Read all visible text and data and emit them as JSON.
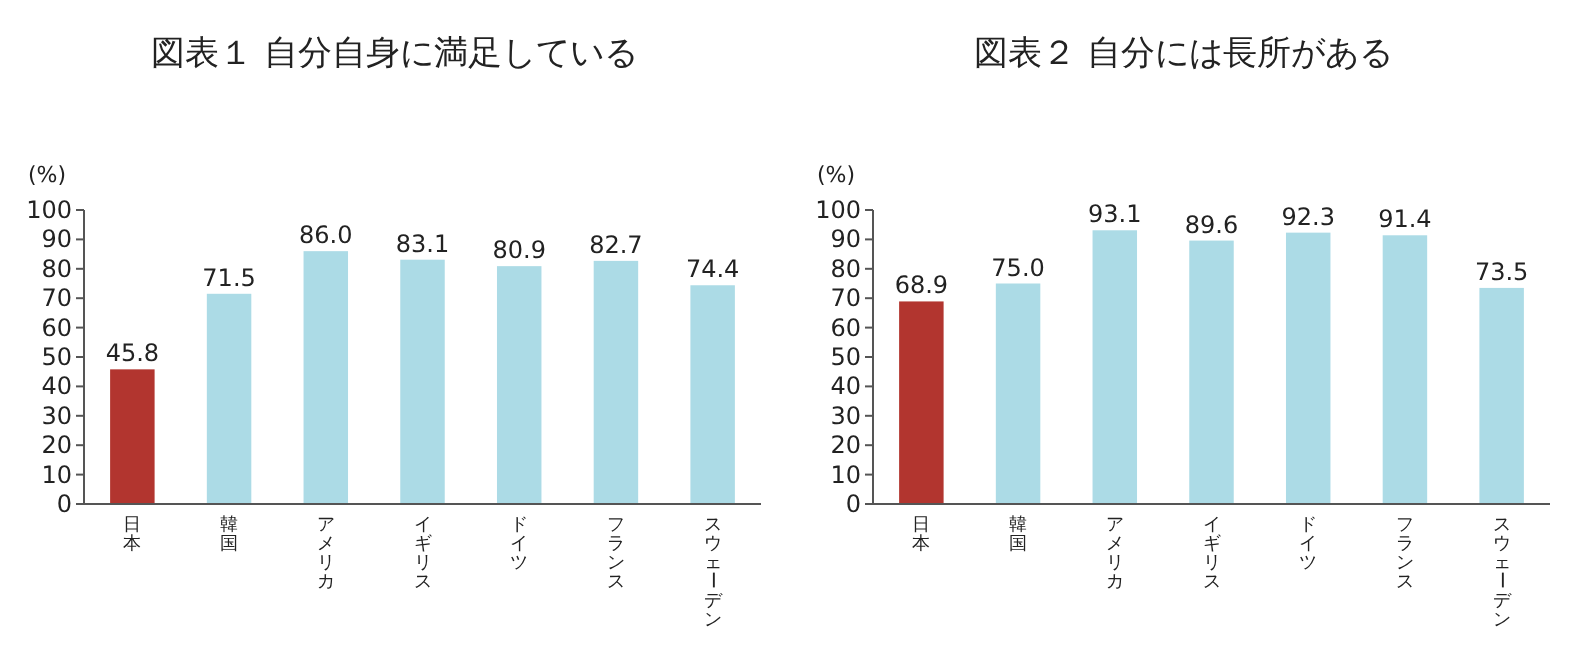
{
  "chart_data": [
    {
      "type": "bar",
      "title": "図表１ 自分自身に満足している",
      "ylabel": "(%)",
      "categories": [
        "日本",
        "韓国",
        "アメリカ",
        "イギリス",
        "ドイツ",
        "フランス",
        "スウェーデン"
      ],
      "values": [
        45.8,
        71.5,
        86.0,
        83.1,
        80.9,
        82.7,
        74.4
      ],
      "colors": [
        "#b2352f",
        "#acdbe6",
        "#acdbe6",
        "#acdbe6",
        "#acdbe6",
        "#acdbe6",
        "#acdbe6"
      ],
      "value_labels": [
        "45.8",
        "71.5",
        "86.0",
        "83.1",
        "80.9",
        "82.7",
        "74.4"
      ],
      "ylim": [
        0,
        100
      ],
      "yticks": [
        0,
        10,
        20,
        30,
        40,
        50,
        60,
        70,
        80,
        90,
        100
      ],
      "grid": false
    },
    {
      "type": "bar",
      "title": "図表２ 自分には長所がある",
      "ylabel": "(%)",
      "categories": [
        "日本",
        "韓国",
        "アメリカ",
        "イギリス",
        "ドイツ",
        "フランス",
        "スウェーデン"
      ],
      "values": [
        68.9,
        75.0,
        93.1,
        89.6,
        92.3,
        91.4,
        73.5
      ],
      "colors": [
        "#b2352f",
        "#acdbe6",
        "#acdbe6",
        "#acdbe6",
        "#acdbe6",
        "#acdbe6",
        "#acdbe6"
      ],
      "value_labels": [
        "68.9",
        "75.0",
        "93.1",
        "89.6",
        "92.3",
        "91.4",
        "73.5"
      ],
      "ylim": [
        0,
        100
      ],
      "yticks": [
        0,
        10,
        20,
        30,
        40,
        50,
        60,
        70,
        80,
        90,
        100
      ],
      "grid": false
    }
  ]
}
